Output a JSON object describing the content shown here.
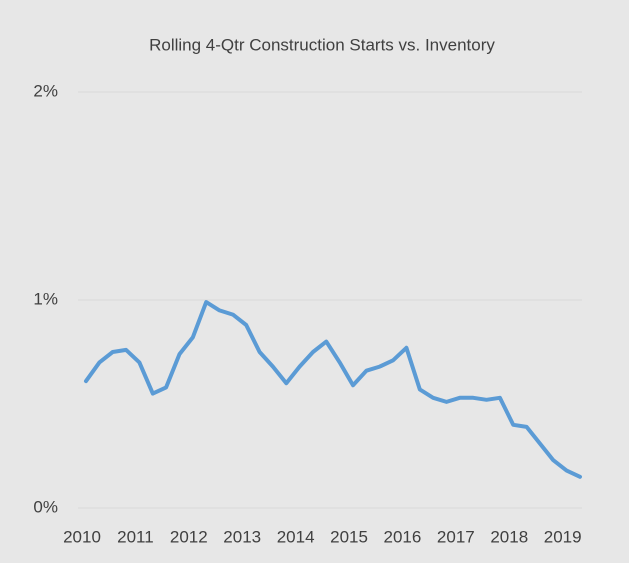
{
  "chart_data": {
    "type": "line",
    "title": "Rolling 4-Qtr Construction Starts vs. Inventory",
    "categories": [
      "2010",
      null,
      null,
      null,
      "2011",
      null,
      null,
      null,
      "2012",
      null,
      null,
      null,
      "2013",
      null,
      null,
      null,
      "2014",
      null,
      null,
      null,
      "2015",
      null,
      null,
      null,
      "2016",
      null,
      null,
      null,
      "2017",
      null,
      null,
      null,
      "2018",
      null,
      null,
      null,
      "2019",
      null
    ],
    "values": [
      0.61,
      0.7,
      0.75,
      0.76,
      0.7,
      0.55,
      0.58,
      0.74,
      0.82,
      0.99,
      0.95,
      0.93,
      0.88,
      0.75,
      0.68,
      0.6,
      0.68,
      0.75,
      0.8,
      0.7,
      0.59,
      0.66,
      0.68,
      0.71,
      0.77,
      0.57,
      0.53,
      0.51,
      0.53,
      0.53,
      0.52,
      0.53,
      0.4,
      0.39,
      0.31,
      0.23,
      0.18,
      0.15
    ],
    "color": "#5b9bd5",
    "ylim": [
      0,
      2
    ],
    "yticks": [
      {
        "value": 0,
        "label": "0%"
      },
      {
        "value": 1,
        "label": "1%"
      },
      {
        "value": 2,
        "label": "2%"
      }
    ],
    "grid": true
  }
}
